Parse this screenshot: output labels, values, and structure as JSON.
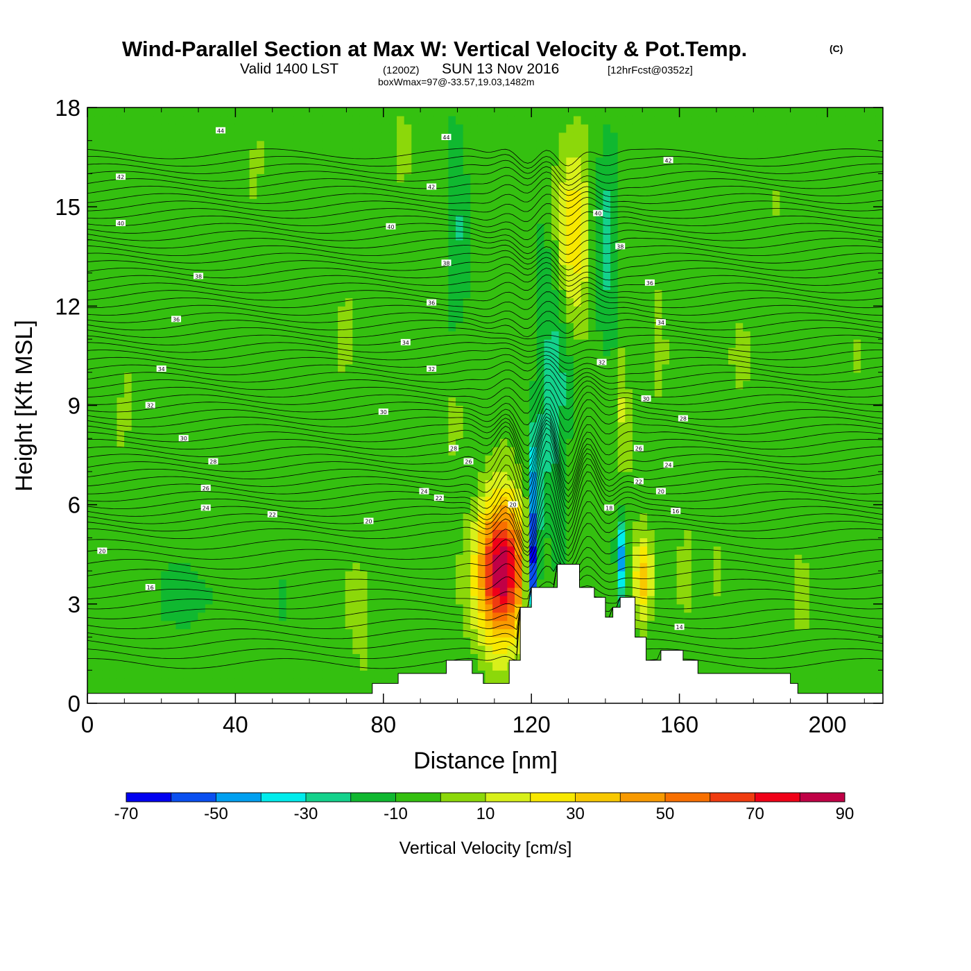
{
  "title": {
    "main": "Wind-Parallel Section at Max W: Vertical Velocity & Pot.Temp.",
    "copyright": "(C)",
    "valid_prefix": "Valid 1400 LST",
    "valid_utc": "(1200Z)",
    "valid_date": "SUN 13 Nov 2016",
    "forecast": "[12hrFcst@0352z]",
    "boxwmax": "boxWmax=97@-33.57,19.03,1482m"
  },
  "chart_data": {
    "type": "heatmap",
    "title": "Wind-Parallel Section at Max W: Vertical Velocity & Pot.Temp.",
    "xlabel": "Distance [nm]",
    "ylabel": "Height [Kft MSL]",
    "xlim": [
      0,
      215
    ],
    "ylim": [
      0,
      18
    ],
    "x_ticks": [
      0,
      40,
      80,
      120,
      160,
      200
    ],
    "x_tick_labels": [
      "0",
      "40",
      "80",
      "120",
      "160",
      "200"
    ],
    "y_ticks": [
      0,
      3,
      6,
      9,
      12,
      15,
      18
    ],
    "y_tick_labels": [
      "0",
      "3",
      "6",
      "9",
      "12",
      "15",
      "18"
    ],
    "background_w": -5,
    "w_features": [
      {
        "x": 112,
        "z": 4.0,
        "sx": 6.5,
        "sz": 2.1,
        "w": 97
      },
      {
        "x": 131,
        "z": 14.2,
        "sx": 5.5,
        "sz": 3.0,
        "w": 32
      },
      {
        "x": 150,
        "z": 3.8,
        "sx": 2.5,
        "sz": 1.2,
        "w": 45
      },
      {
        "x": 145,
        "z": 9.0,
        "sx": 1.3,
        "sz": 2.0,
        "w": 22
      },
      {
        "x": 120,
        "z": 4.0,
        "sx": 1.6,
        "sz": 1.6,
        "w": -60
      },
      {
        "x": 121,
        "z": 6.0,
        "sx": 1.4,
        "sz": 2.4,
        "w": -40
      },
      {
        "x": 144,
        "z": 4.4,
        "sx": 1.2,
        "sz": 1.3,
        "w": -42
      },
      {
        "x": 126,
        "z": 10.0,
        "sx": 4.5,
        "sz": 5.0,
        "w": -22
      },
      {
        "x": 140,
        "z": 14.0,
        "sx": 4.0,
        "sz": 4.0,
        "w": -18
      },
      {
        "x": 100,
        "z": 14.5,
        "sx": 3.0,
        "sz": 3.5,
        "w": -14
      },
      {
        "x": 74,
        "z": 3.0,
        "sx": 4.0,
        "sz": 2.0,
        "w": 10
      },
      {
        "x": 10,
        "z": 8.5,
        "sx": 4.0,
        "sz": 2.0,
        "w": 6
      },
      {
        "x": 47,
        "z": 8.0,
        "sx": 2.5,
        "sz": 2.0,
        "w": 5
      },
      {
        "x": 70,
        "z": 11.5,
        "sx": 3.5,
        "sz": 2.0,
        "w": 6
      },
      {
        "x": 45,
        "z": 16.0,
        "sx": 3.5,
        "sz": 1.8,
        "w": 6
      },
      {
        "x": 85,
        "z": 16.0,
        "sx": 4.0,
        "sz": 2.0,
        "w": 5
      },
      {
        "x": 99,
        "z": 8.5,
        "sx": 1.8,
        "sz": 0.9,
        "w": 16
      },
      {
        "x": 155,
        "z": 11.0,
        "sx": 1.0,
        "sz": 2.5,
        "w": 12
      },
      {
        "x": 162,
        "z": 4.0,
        "sx": 2.0,
        "sz": 1.2,
        "w": 14
      },
      {
        "x": 170,
        "z": 4.0,
        "sx": 1.5,
        "sz": 1.2,
        "w": 8
      },
      {
        "x": 193,
        "z": 3.2,
        "sx": 2.0,
        "sz": 1.2,
        "w": 10
      },
      {
        "x": 187,
        "z": 16.0,
        "sx": 4.0,
        "sz": 2.0,
        "w": 5
      },
      {
        "x": 207,
        "z": 10.5,
        "sx": 2.0,
        "sz": 2.0,
        "w": 5
      },
      {
        "x": 210,
        "z": 6.5,
        "sx": 2.0,
        "sz": 0.8,
        "w": 7
      },
      {
        "x": 32,
        "z": 5.5,
        "sx": 2.0,
        "sz": 0.8,
        "w": 4
      },
      {
        "x": 178,
        "z": 10.5,
        "sx": 5.0,
        "sz": 4.0,
        "w": 4
      },
      {
        "x": 28,
        "z": 3.3,
        "sx": 8.0,
        "sz": 1.0,
        "w": -12
      },
      {
        "x": 52,
        "z": 3.2,
        "sx": 1.5,
        "sz": 1.0,
        "w": -12
      },
      {
        "x": 164,
        "z": 8.0,
        "sx": 5.0,
        "sz": 1.5,
        "w": 3
      }
    ],
    "terrain": [
      [
        0,
        0.3
      ],
      [
        77,
        0.3
      ],
      [
        77,
        0.6
      ],
      [
        84,
        0.6
      ],
      [
        84,
        0.9
      ],
      [
        97,
        0.9
      ],
      [
        97,
        1.3
      ],
      [
        104,
        1.3
      ],
      [
        104,
        0.9
      ],
      [
        107,
        0.9
      ],
      [
        107,
        0.6
      ],
      [
        114,
        0.6
      ],
      [
        114,
        1.3
      ],
      [
        117,
        1.3
      ],
      [
        117,
        2.9
      ],
      [
        120,
        2.9
      ],
      [
        120,
        3.5
      ],
      [
        127,
        3.5
      ],
      [
        127,
        4.2
      ],
      [
        133,
        4.2
      ],
      [
        133,
        3.5
      ],
      [
        137,
        3.5
      ],
      [
        137,
        3.2
      ],
      [
        140,
        3.2
      ],
      [
        140,
        2.6
      ],
      [
        142,
        2.6
      ],
      [
        142,
        2.9
      ],
      [
        144,
        2.9
      ],
      [
        144,
        3.2
      ],
      [
        148,
        3.2
      ],
      [
        148,
        2.0
      ],
      [
        151,
        2.0
      ],
      [
        151,
        1.3
      ],
      [
        155,
        1.3
      ],
      [
        155,
        1.6
      ],
      [
        161,
        1.6
      ],
      [
        161,
        1.3
      ],
      [
        165,
        1.3
      ],
      [
        165,
        0.9
      ],
      [
        190,
        0.9
      ],
      [
        190,
        0.6
      ],
      [
        192,
        0.6
      ],
      [
        192,
        0.3
      ],
      [
        215,
        0.3
      ]
    ],
    "theta_contour_labels": [
      {
        "text": "44",
        "x": 36,
        "z": 17.3
      },
      {
        "text": "44",
        "x": 97,
        "z": 17.1
      },
      {
        "text": "42",
        "x": 9,
        "z": 15.9
      },
      {
        "text": "42",
        "x": 93,
        "z": 15.6
      },
      {
        "text": "42",
        "x": 157,
        "z": 16.4
      },
      {
        "text": "40",
        "x": 9,
        "z": 14.5
      },
      {
        "text": "40",
        "x": 82,
        "z": 14.4
      },
      {
        "text": "40",
        "x": 138,
        "z": 14.8
      },
      {
        "text": "38",
        "x": 30,
        "z": 12.9
      },
      {
        "text": "38",
        "x": 97,
        "z": 13.3
      },
      {
        "text": "38",
        "x": 144,
        "z": 13.8
      },
      {
        "text": "36",
        "x": 24,
        "z": 11.6
      },
      {
        "text": "36",
        "x": 93,
        "z": 12.1
      },
      {
        "text": "36",
        "x": 152,
        "z": 12.7
      },
      {
        "text": "34",
        "x": 20,
        "z": 10.1
      },
      {
        "text": "34",
        "x": 86,
        "z": 10.9
      },
      {
        "text": "34",
        "x": 155,
        "z": 11.5
      },
      {
        "text": "32",
        "x": 17,
        "z": 9.0
      },
      {
        "text": "32",
        "x": 93,
        "z": 10.1
      },
      {
        "text": "32",
        "x": 139,
        "z": 10.3
      },
      {
        "text": "30",
        "x": 26,
        "z": 8.0
      },
      {
        "text": "30",
        "x": 80,
        "z": 8.8
      },
      {
        "text": "30",
        "x": 151,
        "z": 9.2
      },
      {
        "text": "28",
        "x": 34,
        "z": 7.3
      },
      {
        "text": "28",
        "x": 99,
        "z": 7.7
      },
      {
        "text": "28",
        "x": 161,
        "z": 8.6
      },
      {
        "text": "26",
        "x": 32,
        "z": 6.5
      },
      {
        "text": "26",
        "x": 103,
        "z": 7.3
      },
      {
        "text": "26",
        "x": 149,
        "z": 7.7
      },
      {
        "text": "24",
        "x": 32,
        "z": 5.9
      },
      {
        "text": "24",
        "x": 91,
        "z": 6.4
      },
      {
        "text": "24",
        "x": 157,
        "z": 7.2
      },
      {
        "text": "22",
        "x": 50,
        "z": 5.7
      },
      {
        "text": "22",
        "x": 95,
        "z": 6.2
      },
      {
        "text": "22",
        "x": 149,
        "z": 6.7
      },
      {
        "text": "20",
        "x": 4,
        "z": 4.6
      },
      {
        "text": "20",
        "x": 115,
        "z": 6.0
      },
      {
        "text": "20",
        "x": 155,
        "z": 6.4
      },
      {
        "text": "18",
        "x": 141,
        "z": 5.9
      },
      {
        "text": "16",
        "x": 17,
        "z": 3.5
      },
      {
        "text": "16",
        "x": 159,
        "z": 5.8
      },
      {
        "text": "14",
        "x": 160,
        "z": 2.3
      },
      {
        "text": "20",
        "x": 76,
        "z": 5.5
      }
    ]
  },
  "colorbar": {
    "label": "Vertical Velocity [cm/s]",
    "bounds": [
      -70,
      -60,
      -50,
      -40,
      -30,
      -20,
      -10,
      0,
      10,
      20,
      30,
      40,
      50,
      60,
      70,
      80,
      90
    ],
    "tick_labels": [
      "-70",
      "-50",
      "-30",
      "-10",
      "10",
      "30",
      "50",
      "70",
      "90"
    ],
    "colors": [
      "#0000f0",
      "#0a4ff0",
      "#00a0f0",
      "#00ecec",
      "#14d28c",
      "#10b830",
      "#34c010",
      "#8cd80a",
      "#d8f01a",
      "#f8e800",
      "#f8c800",
      "#f89a00",
      "#f87000",
      "#f03c10",
      "#f00018",
      "#c00046"
    ]
  }
}
